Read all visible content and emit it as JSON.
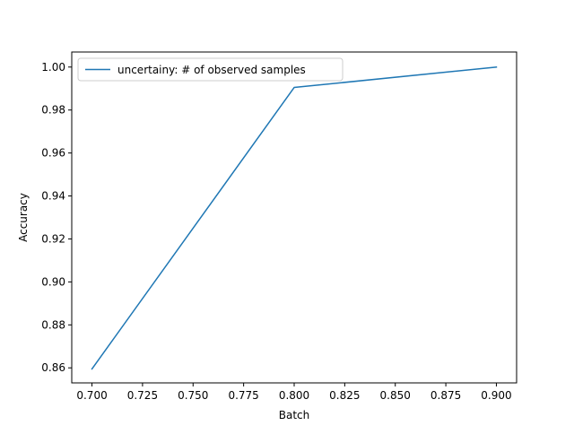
{
  "chart_data": {
    "type": "line",
    "title": "",
    "xlabel": "Batch",
    "ylabel": "Accuracy",
    "xlim": [
      0.69,
      0.91
    ],
    "ylim": [
      0.853,
      1.007
    ],
    "x_ticks": [
      0.7,
      0.725,
      0.75,
      0.775,
      0.8,
      0.825,
      0.85,
      0.875,
      0.9
    ],
    "x_tick_labels": [
      "0.700",
      "0.725",
      "0.750",
      "0.775",
      "0.800",
      "0.825",
      "0.850",
      "0.875",
      "0.900"
    ],
    "y_ticks": [
      0.86,
      0.88,
      0.9,
      0.92,
      0.94,
      0.96,
      0.98,
      1.0
    ],
    "y_tick_labels": [
      "0.86",
      "0.88",
      "0.90",
      "0.92",
      "0.94",
      "0.96",
      "0.98",
      "1.00"
    ],
    "grid": false,
    "legend_position": "upper-left",
    "series": [
      {
        "name": "uncertainy: # of observed samples",
        "color": "#1f77b4",
        "x": [
          0.7,
          0.8,
          0.9
        ],
        "y": [
          0.8595,
          0.9905,
          1.0
        ]
      }
    ]
  }
}
